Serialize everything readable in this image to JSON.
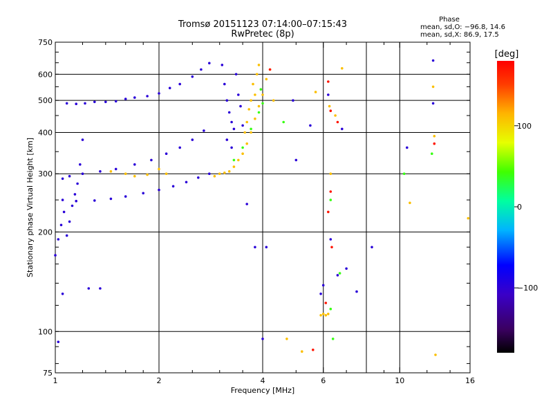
{
  "chart_data": {
    "type": "scatter",
    "title": "Tromsø 20151123 07:14:00–07:15:43",
    "subtitle": "RwPretec (8p)",
    "xlabel": "Frequency [MHz]",
    "ylabel": "Stationary phase Virtual Height [km]",
    "xscale": "log",
    "yscale": "log",
    "xlim": [
      1,
      16
    ],
    "ylim": [
      75,
      750
    ],
    "x_ticks": [
      1,
      2,
      4,
      6,
      10,
      16
    ],
    "x_tick_labels": [
      "1",
      "2",
      "4",
      "6",
      "10",
      "16"
    ],
    "x_gridlines": [
      2,
      4,
      6,
      8,
      10
    ],
    "y_ticks": [
      75,
      100,
      200,
      300,
      400,
      500,
      600,
      750
    ],
    "y_tick_labels": [
      "75",
      "100",
      "200",
      "300",
      "400",
      "500",
      "600",
      "750"
    ],
    "y_gridlines": [
      100,
      200,
      300,
      400,
      500,
      600
    ],
    "grid": true,
    "phase_stats": {
      "heading": "Phase",
      "line1": "mean, sd,O: −96.8, 14.6",
      "line2": "mean, sd,X:  86.9, 17.5"
    },
    "colorbar": {
      "label": "[deg]",
      "tick_labels": [
        "100",
        "0",
        "−100"
      ],
      "tick_values": [
        100,
        0,
        -100
      ],
      "range": [
        -180,
        180
      ],
      "colormap": "rainbow (black-purple-blue-cyan-green-yellow-orange-red)"
    },
    "series": [
      {
        "color_value": -100,
        "points": [
          [
            1.08,
            490
          ],
          [
            1.15,
            488
          ],
          [
            1.22,
            490
          ],
          [
            1.3,
            495
          ],
          [
            1.4,
            495
          ],
          [
            1.5,
            497
          ],
          [
            1.6,
            505
          ],
          [
            1.7,
            510
          ],
          [
            1.85,
            515
          ],
          [
            2.0,
            525
          ],
          [
            2.15,
            545
          ],
          [
            2.3,
            560
          ],
          [
            2.5,
            590
          ],
          [
            2.65,
            620
          ],
          [
            2.8,
            648
          ],
          [
            1.05,
            250
          ],
          [
            1.15,
            248
          ],
          [
            1.3,
            249
          ],
          [
            1.45,
            252
          ],
          [
            1.6,
            256
          ],
          [
            1.8,
            262
          ],
          [
            2.0,
            268
          ],
          [
            2.2,
            275
          ],
          [
            2.4,
            283
          ],
          [
            2.6,
            292
          ],
          [
            2.8,
            300
          ],
          [
            1.05,
            290
          ],
          [
            1.1,
            295
          ],
          [
            1.2,
            300
          ],
          [
            1.35,
            305
          ],
          [
            1.5,
            310
          ],
          [
            1.7,
            320
          ],
          [
            1.9,
            330
          ],
          [
            2.1,
            345
          ],
          [
            2.3,
            360
          ],
          [
            2.5,
            380
          ],
          [
            2.7,
            405
          ],
          [
            1.0,
            170
          ],
          [
            1.02,
            190
          ],
          [
            1.04,
            210
          ],
          [
            1.06,
            230
          ],
          [
            1.08,
            195
          ],
          [
            1.1,
            215
          ],
          [
            1.12,
            240
          ],
          [
            1.14,
            260
          ],
          [
            1.16,
            280
          ],
          [
            1.18,
            320
          ],
          [
            1.2,
            380
          ],
          [
            3.05,
            640
          ],
          [
            3.1,
            560
          ],
          [
            3.15,
            500
          ],
          [
            3.2,
            460
          ],
          [
            3.25,
            430
          ],
          [
            3.3,
            410
          ],
          [
            3.15,
            380
          ],
          [
            3.25,
            360
          ],
          [
            3.35,
            600
          ],
          [
            3.4,
            520
          ],
          [
            3.45,
            480
          ],
          [
            3.5,
            420
          ],
          [
            1.05,
            130
          ],
          [
            1.25,
            135
          ],
          [
            1.35,
            135
          ],
          [
            6.3,
            190
          ],
          [
            6.0,
            138
          ],
          [
            5.9,
            130
          ],
          [
            6.6,
            148
          ],
          [
            7.0,
            155
          ],
          [
            7.5,
            132
          ],
          [
            8.3,
            180
          ],
          [
            10.5,
            360
          ],
          [
            12.5,
            660
          ],
          [
            12.5,
            490
          ],
          [
            5.5,
            420
          ],
          [
            5.0,
            330
          ],
          [
            3.8,
            180
          ],
          [
            4.1,
            180
          ],
          [
            4.0,
            95
          ],
          [
            3.6,
            243
          ],
          [
            4.9,
            500
          ],
          [
            6.2,
            520
          ],
          [
            6.8,
            410
          ],
          [
            1.02,
            93
          ]
        ]
      },
      {
        "color_value": 110,
        "points": [
          [
            2.9,
            295
          ],
          [
            3.0,
            300
          ],
          [
            3.1,
            302
          ],
          [
            3.2,
            305
          ],
          [
            3.3,
            315
          ],
          [
            3.4,
            330
          ],
          [
            3.5,
            345
          ],
          [
            3.6,
            370
          ],
          [
            3.7,
            400
          ],
          [
            3.8,
            440
          ],
          [
            3.9,
            480
          ],
          [
            4.0,
            520
          ],
          [
            3.75,
            560
          ],
          [
            3.85,
            600
          ],
          [
            3.9,
            640
          ],
          [
            3.55,
            400
          ],
          [
            3.6,
            430
          ],
          [
            3.65,
            470
          ],
          [
            3.7,
            500
          ],
          [
            3.8,
            520
          ],
          [
            4.1,
            580
          ],
          [
            4.2,
            620
          ],
          [
            4.3,
            500
          ],
          [
            1.6,
            300
          ],
          [
            1.7,
            295
          ],
          [
            1.85,
            298
          ],
          [
            2.0,
            310
          ],
          [
            2.1,
            300
          ],
          [
            1.45,
            305
          ],
          [
            5.9,
            112
          ],
          [
            6.0,
            113
          ],
          [
            6.1,
            112
          ],
          [
            6.2,
            113
          ],
          [
            6.8,
            625
          ],
          [
            5.7,
            530
          ],
          [
            6.25,
            480
          ],
          [
            6.3,
            300
          ],
          [
            6.5,
            450
          ],
          [
            10.7,
            245
          ],
          [
            12.5,
            550
          ],
          [
            12.6,
            390
          ],
          [
            4.7,
            95
          ],
          [
            5.2,
            87
          ],
          [
            12.7,
            85
          ],
          [
            15.8,
            220
          ]
        ]
      },
      {
        "color_value": 40,
        "points": [
          [
            3.3,
            330
          ],
          [
            3.5,
            360
          ],
          [
            3.7,
            410
          ],
          [
            3.9,
            460
          ],
          [
            4.0,
            490
          ],
          [
            3.95,
            540
          ],
          [
            6.3,
            250
          ],
          [
            6.4,
            95
          ],
          [
            12.4,
            345
          ],
          [
            10.3,
            300
          ],
          [
            4.6,
            430
          ],
          [
            6.7,
            150
          ],
          [
            6.3,
            117
          ]
        ]
      },
      {
        "color_value": 170,
        "points": [
          [
            4.2,
            620
          ],
          [
            6.2,
            570
          ],
          [
            6.3,
            465
          ],
          [
            6.6,
            430
          ],
          [
            6.3,
            265
          ],
          [
            6.2,
            230
          ],
          [
            6.35,
            180
          ],
          [
            6.1,
            122
          ],
          [
            12.6,
            370
          ],
          [
            5.6,
            88
          ]
        ]
      }
    ]
  }
}
